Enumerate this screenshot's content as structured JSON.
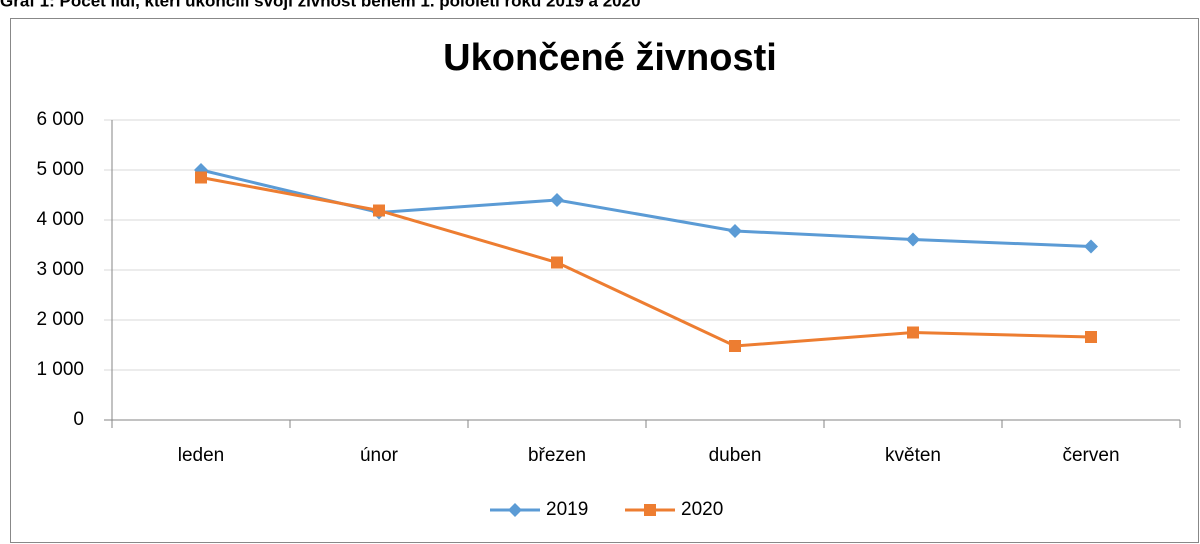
{
  "caption": "Graf 1: Počet lidí, kteří ukončili svoji živnost během 1. pololetí roku 2019 a 2020",
  "chart_data": {
    "type": "line",
    "title": "Ukončené živnosti",
    "categories": [
      "leden",
      "únor",
      "březen",
      "duben",
      "květen",
      "červen"
    ],
    "series": [
      {
        "name": "2019",
        "color": "#5b9bd5",
        "marker": "diamond",
        "values": [
          5000,
          4150,
          4400,
          3780,
          3610,
          3470
        ]
      },
      {
        "name": "2020",
        "color": "#ed7d31",
        "marker": "square",
        "values": [
          4850,
          4190,
          3150,
          1480,
          1750,
          1660
        ]
      }
    ],
    "ylim": [
      0,
      6000
    ],
    "yticks": [
      0,
      {
        "value": 1000,
        "label": "1 000"
      },
      {
        "value": 2000,
        "label": "2 000"
      },
      {
        "value": 3000,
        "label": "3 000"
      },
      {
        "value": 4000,
        "label": "4 000"
      },
      {
        "value": 5000,
        "label": "5 000"
      },
      {
        "value": 6000,
        "label": "6 000"
      }
    ],
    "grid": true,
    "legend": "bottom"
  }
}
